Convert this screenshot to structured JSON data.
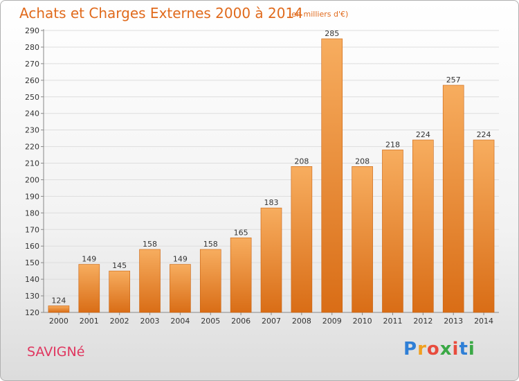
{
  "header": {
    "title": "Achats et Charges Externes 2000 à 2014",
    "subtitle": "(en milliers d'€)"
  },
  "footer": {
    "commune": "SAVIGNé",
    "logo_letters": [
      "P",
      "r",
      "o",
      "x",
      "i",
      "t",
      "i"
    ],
    "logo_colors": [
      "#2f7fd6",
      "#f0a020",
      "#e84c3d",
      "#3aa845",
      "#e84c3d",
      "#2f7fd6",
      "#3aa845"
    ]
  },
  "colors": {
    "bar_top": "#f7ad5f",
    "bar_bottom": "#d96d16",
    "bar_edge": "#c9620f",
    "grid": "#dddddd",
    "axis": "#888888",
    "label": "#333333"
  },
  "chart_data": {
    "type": "bar",
    "categories": [
      "2000",
      "2001",
      "2002",
      "2003",
      "2004",
      "2005",
      "2006",
      "2007",
      "2008",
      "2009",
      "2010",
      "2011",
      "2012",
      "2013",
      "2014"
    ],
    "values": [
      124,
      149,
      145,
      158,
      149,
      158,
      165,
      183,
      208,
      285,
      208,
      218,
      224,
      257,
      224
    ],
    "title": "Achats et Charges Externes 2000 à 2014",
    "xlabel": "",
    "ylabel": "",
    "ylim": [
      120,
      290
    ],
    "yticks": [
      120,
      130,
      140,
      150,
      160,
      170,
      180,
      190,
      200,
      210,
      220,
      230,
      240,
      250,
      260,
      270,
      280,
      290
    ],
    "grid": true,
    "legend": "none",
    "data_labels": true
  }
}
